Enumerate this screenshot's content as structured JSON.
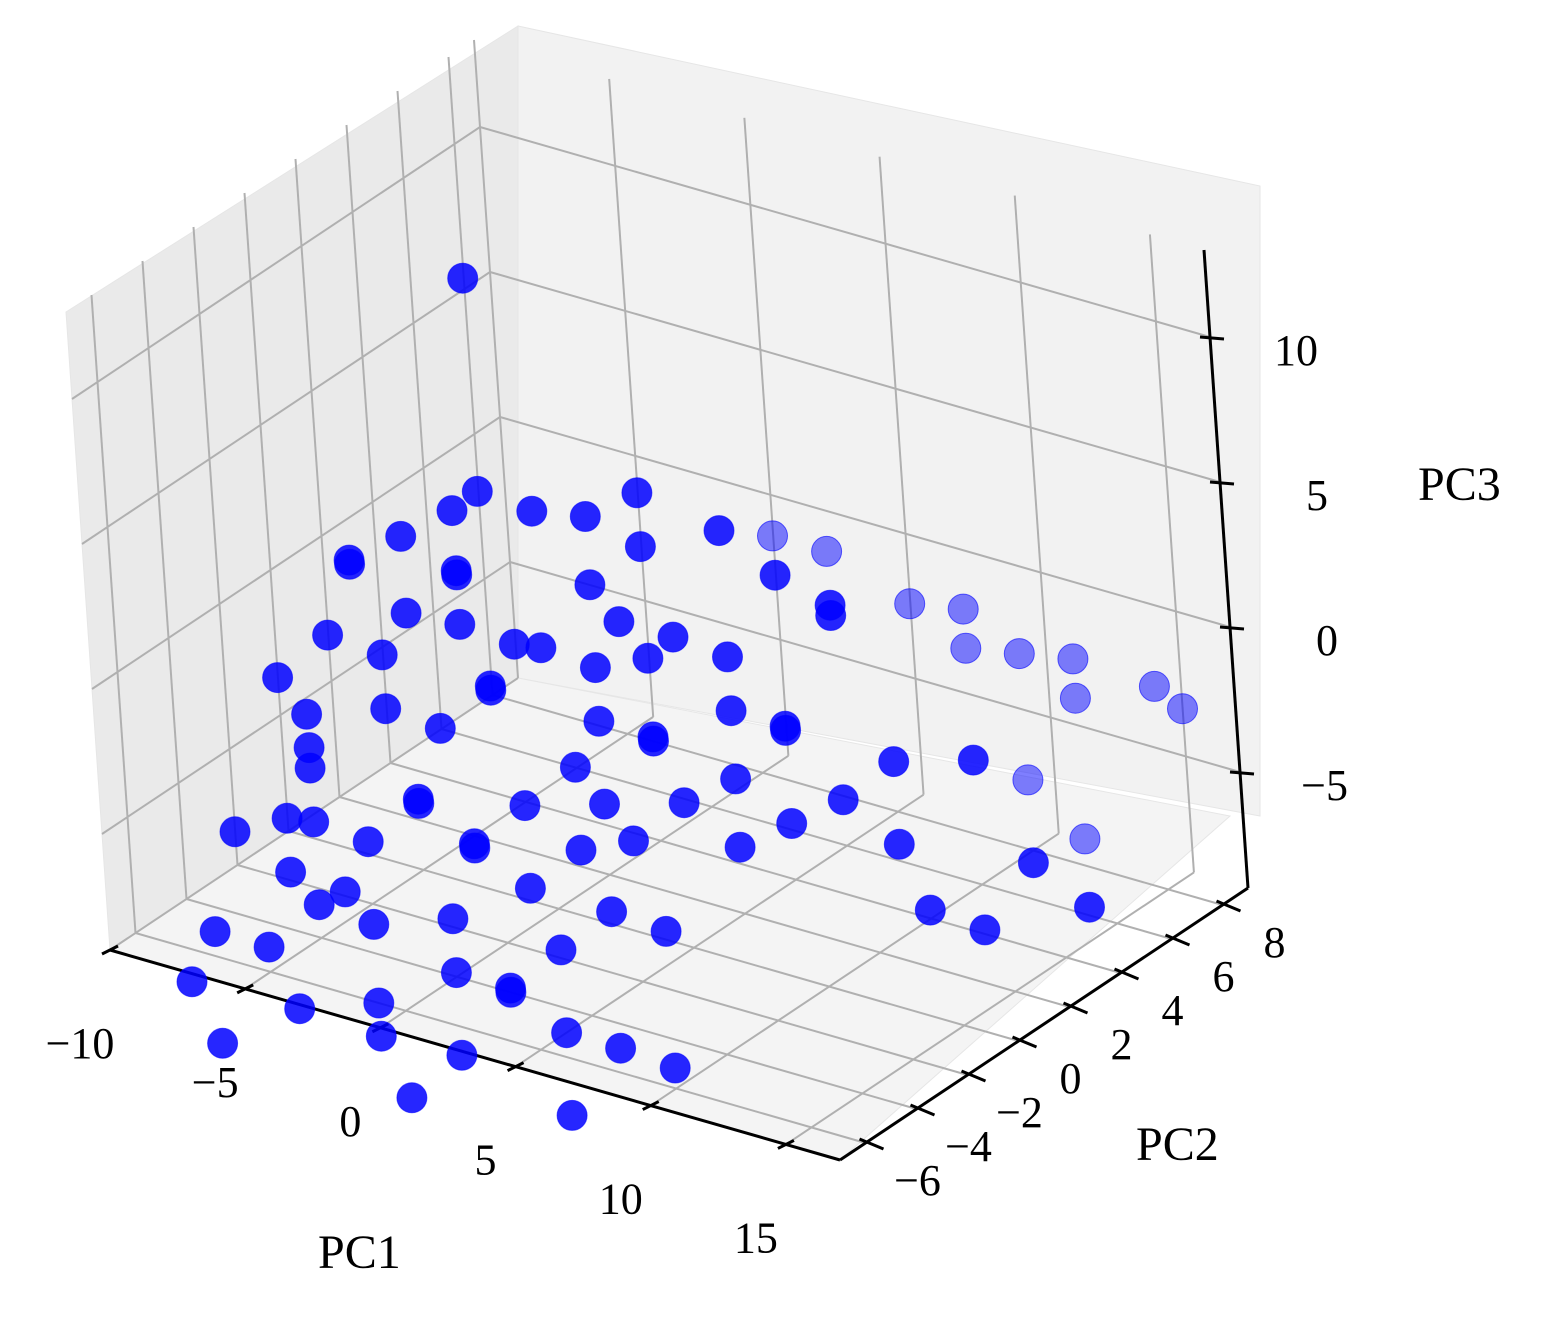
{
  "chart_data": {
    "type": "scatter",
    "projection": "3d",
    "marker_color": "#0000ff",
    "pane_color": "#f2f2f2",
    "grid": true,
    "axes": {
      "x": {
        "label": "PC1",
        "ticks": [
          -10,
          -5,
          0,
          5,
          10,
          15
        ],
        "tick_labels": [
          "−10",
          "−5",
          "0",
          "5",
          "10",
          "15"
        ],
        "lim": [
          -10,
          17
        ]
      },
      "y": {
        "label": "PC2",
        "ticks": [
          -6,
          -4,
          -2,
          0,
          2,
          4,
          6,
          8
        ],
        "tick_labels": [
          "−6",
          "−4",
          "−2",
          "0",
          "2",
          "4",
          "6",
          "8"
        ],
        "lim": [
          -7,
          9
        ]
      },
      "z": {
        "label": "PC3",
        "ticks": [
          -5,
          0,
          5,
          10
        ],
        "tick_labels": [
          "−5",
          "0",
          "5",
          "10"
        ],
        "lim": [
          -9,
          13
        ]
      }
    },
    "points": [
      [
        -4,
        2,
        10.5
      ],
      [
        -3,
        1,
        4
      ],
      [
        -3.5,
        0.5,
        3.5
      ],
      [
        -2,
        2,
        3
      ],
      [
        -5,
        0,
        2.5
      ],
      [
        -6,
        -1,
        2
      ],
      [
        -1,
        3,
        2.5
      ],
      [
        0,
        4,
        3
      ],
      [
        1,
        3,
        2
      ],
      [
        3,
        4,
        2.5
      ],
      [
        4,
        5,
        2
      ],
      [
        5,
        4,
        1.5
      ],
      [
        6,
        5,
        2
      ],
      [
        7,
        4,
        1
      ],
      [
        8,
        3,
        1.5
      ],
      [
        9,
        5,
        1
      ],
      [
        10,
        6,
        0.5
      ],
      [
        11,
        5,
        0
      ],
      [
        12,
        6,
        -0.5
      ],
      [
        13,
        7,
        -1
      ],
      [
        14,
        6,
        -1.5
      ],
      [
        15,
        8,
        -2
      ],
      [
        16,
        8,
        -2.5
      ],
      [
        12,
        4,
        -3
      ],
      [
        13,
        5,
        -4
      ],
      [
        10,
        3,
        -3
      ],
      [
        11,
        2,
        -5
      ],
      [
        9,
        2,
        -4
      ],
      [
        8,
        1,
        -4.5
      ],
      [
        7,
        0,
        -5
      ],
      [
        6,
        1,
        -3.5
      ],
      [
        14,
        4,
        -6
      ],
      [
        15,
        5,
        -5.5
      ],
      [
        16,
        4,
        -7
      ],
      [
        12,
        2,
        -7
      ],
      [
        13,
        3,
        -8
      ],
      [
        -6,
        -2,
        0
      ],
      [
        -5,
        -1,
        -1
      ],
      [
        -4,
        -2,
        -2
      ],
      [
        -3,
        -1,
        -3
      ],
      [
        -2,
        0,
        -2
      ],
      [
        -1,
        -1,
        -1
      ],
      [
        0,
        0,
        0
      ],
      [
        1,
        1,
        -1
      ],
      [
        2,
        0,
        -2
      ],
      [
        3,
        1,
        -3
      ],
      [
        4,
        0,
        -2
      ],
      [
        -6,
        -3,
        -4
      ],
      [
        -5,
        -4,
        -5
      ],
      [
        -4,
        -3,
        -6
      ],
      [
        -3,
        -2,
        -5
      ],
      [
        -2,
        -3,
        -4
      ],
      [
        -1,
        -2,
        -6
      ],
      [
        0,
        -3,
        -5
      ],
      [
        1,
        -2,
        -4
      ],
      [
        2,
        -3,
        -6
      ],
      [
        3,
        -2,
        -5
      ],
      [
        -7,
        -2,
        -3
      ],
      [
        -7,
        -3,
        -6
      ],
      [
        -6,
        -4,
        -7
      ],
      [
        -5,
        -3,
        -8
      ],
      [
        -4,
        -5,
        -7
      ],
      [
        -3,
        -4,
        -8
      ],
      [
        0,
        -4,
        -7
      ],
      [
        1,
        -5,
        -8
      ],
      [
        2,
        -4,
        -9
      ],
      [
        3,
        -5,
        -8
      ],
      [
        4,
        -4,
        -7
      ],
      [
        5,
        -3,
        -6
      ],
      [
        6,
        -2,
        -7
      ],
      [
        -8,
        -1,
        -5
      ],
      [
        -8,
        -2,
        -2
      ],
      [
        -7,
        0,
        1
      ],
      [
        -6,
        1,
        -1
      ],
      [
        -5,
        2,
        0
      ],
      [
        -4,
        1,
        1
      ],
      [
        -3,
        0,
        0
      ],
      [
        -2,
        1,
        -1
      ],
      [
        0,
        2,
        1
      ],
      [
        1,
        2,
        0
      ],
      [
        2,
        2,
        -1
      ],
      [
        3,
        2,
        0
      ],
      [
        4,
        3,
        -1
      ],
      [
        5,
        2,
        -2
      ],
      [
        6,
        3,
        -3
      ],
      [
        7,
        2,
        -2
      ],
      [
        5,
        0,
        -4
      ],
      [
        4,
        -1,
        -5
      ],
      [
        3,
        -1,
        -4
      ],
      [
        2,
        -1,
        -3
      ],
      [
        -9,
        -3,
        -7
      ],
      [
        -8,
        -5,
        -9
      ],
      [
        -6,
        -5,
        -9
      ],
      [
        -4,
        -6,
        -10
      ],
      [
        -1,
        -6,
        -9
      ],
      [
        2,
        -6,
        -10
      ],
      [
        5,
        -5,
        -9
      ],
      [
        -2,
        -5,
        -11
      ],
      [
        0,
        -6,
        -12
      ],
      [
        -7,
        -6,
        -12
      ],
      [
        -9,
        -5,
        -11
      ],
      [
        6,
        -6,
        -11
      ],
      [
        8,
        -4,
        -10
      ],
      [
        7,
        -5,
        -9
      ]
    ]
  }
}
